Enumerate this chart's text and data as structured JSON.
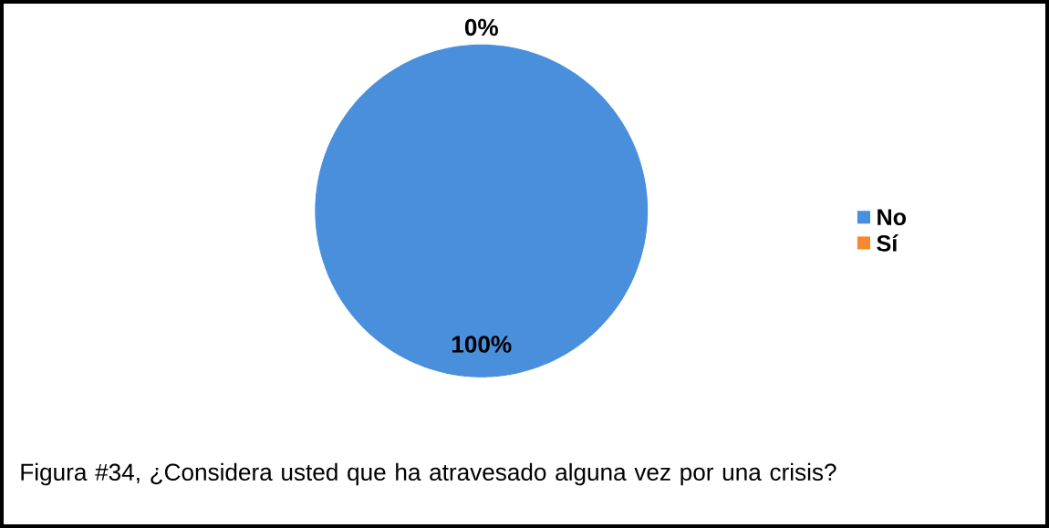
{
  "chart_data": {
    "type": "pie",
    "categories": [
      "No",
      "Sí"
    ],
    "values": [
      100,
      0
    ],
    "colors": [
      "#4a8fdc",
      "#f5892d"
    ],
    "value_labels": [
      "100%",
      "0%"
    ],
    "legend": "right",
    "annotations": [
      "Figura #34, ¿Considera usted que ha atravesado alguna vez por una crisis?"
    ]
  }
}
